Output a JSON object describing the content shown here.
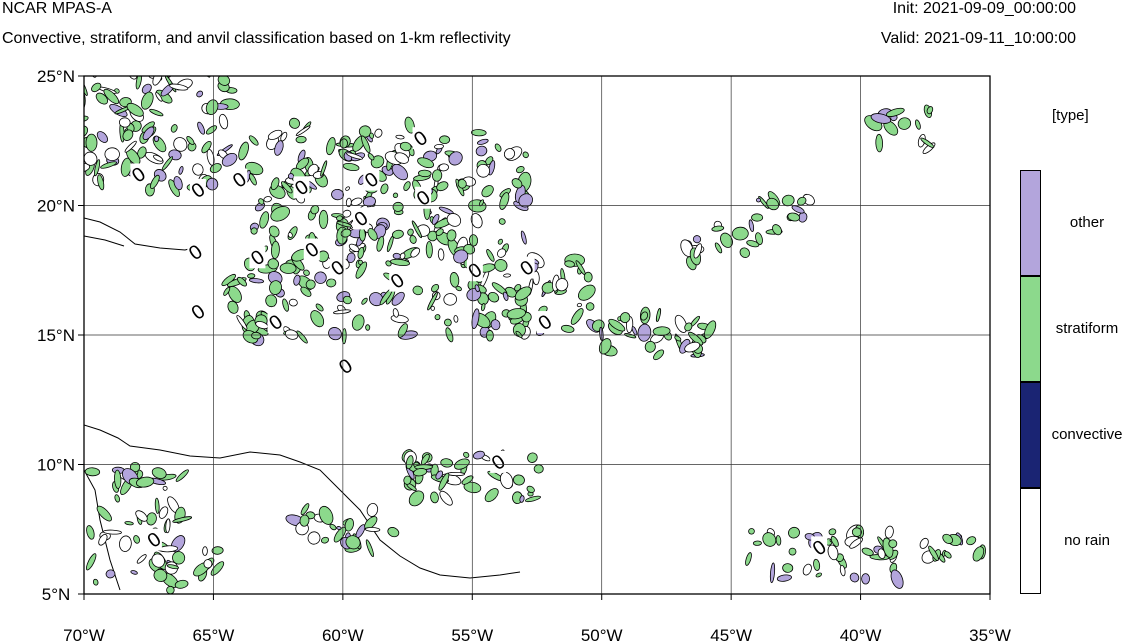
{
  "header": {
    "model": "NCAR MPAS-A",
    "description": "Convective, stratiform, and anvil classification based on 1-km reflectivity",
    "init": "Init: 2021-09-09_00:00:00",
    "valid": "Valid: 2021-09-11_10:00:00"
  },
  "map": {
    "lat_ticks": [
      "25°N",
      "20°N",
      "15°N",
      "10°N",
      "5°N"
    ],
    "lon_ticks": [
      "70°W",
      "65°W",
      "60°W",
      "55°W",
      "50°W",
      "45°W",
      "40°W",
      "35°W"
    ],
    "extent": {
      "lon": [
        -70,
        -35
      ],
      "lat": [
        5,
        25
      ]
    },
    "contour_label": "0"
  },
  "legend": {
    "title": "[type]",
    "entries": [
      {
        "label": "other",
        "color": "#b3a5dc"
      },
      {
        "label": "stratiform",
        "color": "#8cd98c"
      },
      {
        "label": "convective",
        "color": "#1a2473"
      },
      {
        "label": "no rain",
        "color": "#ffffff"
      }
    ]
  },
  "colors": {
    "other": "#b3a5dc",
    "stratiform": "#8cd98c",
    "convective": "#1a2473",
    "no_rain": "#ffffff"
  }
}
